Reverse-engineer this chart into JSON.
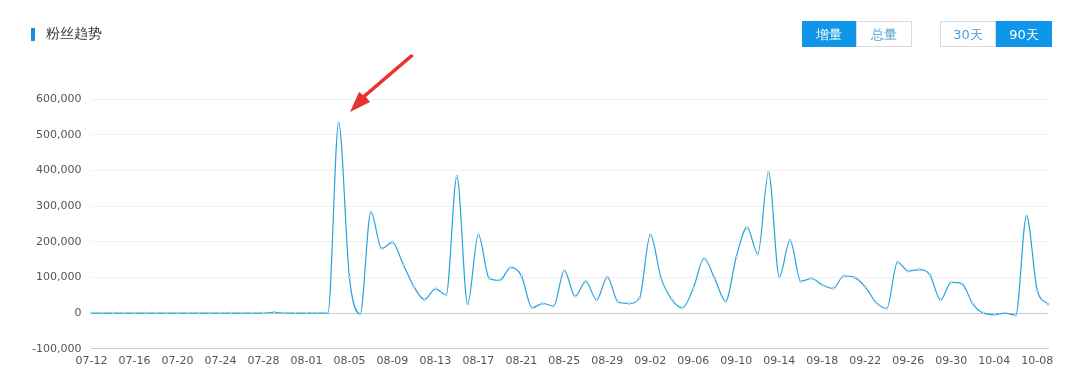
{
  "chart_data": {
    "type": "line",
    "title": "粉丝趋势",
    "annotations": [
      "增量",
      "总量",
      "30天",
      "90天"
    ],
    "categories": [
      "07-12",
      null,
      null,
      null,
      "07-16",
      null,
      null,
      null,
      "07-20",
      null,
      null,
      null,
      "07-24",
      null,
      null,
      null,
      "07-28",
      null,
      null,
      null,
      "08-01",
      null,
      null,
      null,
      "08-05",
      null,
      null,
      null,
      "08-09",
      null,
      null,
      null,
      "08-13",
      null,
      null,
      null,
      "08-17",
      null,
      null,
      null,
      "08-21",
      null,
      null,
      null,
      "08-25",
      null,
      null,
      null,
      "08-29",
      null,
      null,
      null,
      "09-02",
      null,
      null,
      null,
      "09-06",
      null,
      null,
      null,
      "09-10",
      null,
      null,
      null,
      "09-14",
      null,
      null,
      null,
      "09-18",
      null,
      null,
      null,
      "09-22",
      null,
      null,
      null,
      "09-26",
      null,
      null,
      null,
      "09-30",
      null,
      null,
      null,
      "10-04",
      null,
      null,
      null,
      "10-08",
      null
    ],
    "series": [
      {
        "color": "#29a3dc",
        "values": [
          0,
          0,
          0,
          0,
          0,
          0,
          0,
          0,
          0,
          0,
          0,
          0,
          0,
          0,
          0,
          0,
          0,
          2000,
          0,
          0,
          0,
          0,
          0,
          533000,
          100000,
          -2000,
          283000,
          181000,
          198000,
          137000,
          74000,
          38000,
          68000,
          51000,
          383000,
          26000,
          219000,
          98000,
          92000,
          128000,
          105000,
          15000,
          27000,
          20000,
          119000,
          47000,
          89000,
          37000,
          101000,
          31000,
          27000,
          43000,
          219000,
          98000,
          38000,
          15000,
          70000,
          153000,
          96000,
          33000,
          158000,
          240000,
          166000,
          394000,
          102000,
          204000,
          89000,
          97000,
          79000,
          69000,
          104000,
          100000,
          73000,
          30000,
          13000,
          143000,
          118000,
          122000,
          108000,
          37000,
          86000,
          82000,
          26000,
          0,
          -4000,
          0,
          -6000,
          272000,
          64000,
          25000
        ]
      }
    ],
    "ylim": [
      -100000,
      600000
    ],
    "yticks": [
      {
        "value": -100000,
        "label": "-100,000"
      },
      {
        "value": 0,
        "label": "0"
      },
      {
        "value": 100000,
        "label": "100,000"
      },
      {
        "value": 200000,
        "label": "200,000"
      },
      {
        "value": 300000,
        "label": "300,000"
      },
      {
        "value": 400000,
        "label": "400,000"
      },
      {
        "value": 500000,
        "label": "500,000"
      },
      {
        "value": 600000,
        "label": "600,000"
      }
    ],
    "grid": "y",
    "legend": false,
    "marker": "circle",
    "line_style": "solid"
  }
}
